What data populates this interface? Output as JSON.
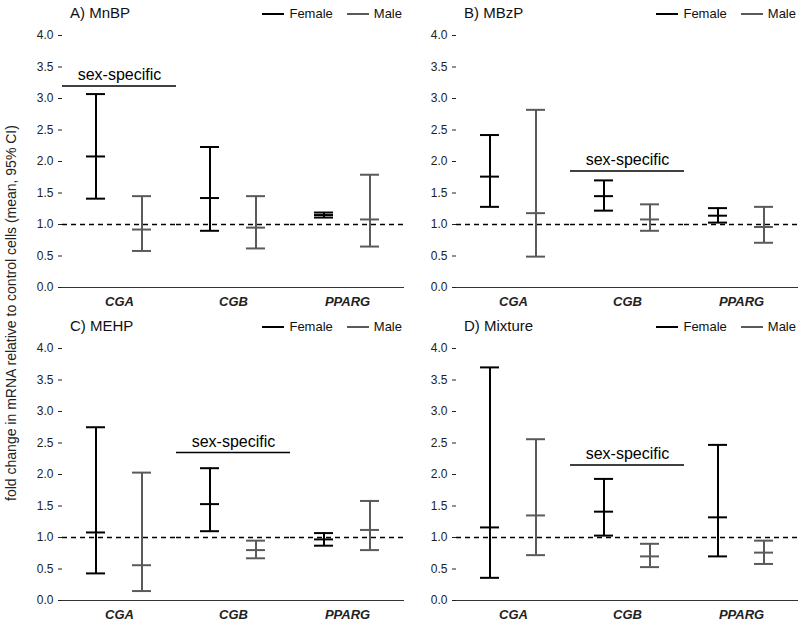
{
  "ylabel": "fold change in mRNA relative to control cells (mean, 95% CI)",
  "chart_data": [
    {
      "type": "errorbar",
      "title": "A) MnBP",
      "categories": [
        "CGA",
        "CGB",
        "PPARG"
      ],
      "series": [
        {
          "name": "Female",
          "color": "#000000",
          "values": [
            2.08,
            1.42,
            1.15
          ],
          "ci_low": [
            1.41,
            0.9,
            1.11
          ],
          "ci_high": [
            3.07,
            2.23,
            1.19
          ]
        },
        {
          "name": "Male",
          "color": "#5a5a5a",
          "values": [
            0.92,
            0.95,
            1.08
          ],
          "ci_low": [
            0.58,
            0.62,
            0.65
          ],
          "ci_high": [
            1.45,
            1.45,
            1.79
          ]
        }
      ],
      "ylim": [
        0,
        4
      ],
      "yticks": [
        0,
        0.5,
        1,
        1.5,
        2,
        2.5,
        3,
        3.5,
        4
      ],
      "reference_line": 1,
      "legend": "top-right",
      "annotations": [
        {
          "text": "sex-specific",
          "category": "CGA",
          "y": 3.2
        }
      ]
    },
    {
      "type": "errorbar",
      "title": "B) MBzP",
      "categories": [
        "CGA",
        "CGB",
        "PPARG"
      ],
      "series": [
        {
          "name": "Female",
          "color": "#000000",
          "values": [
            1.76,
            1.45,
            1.14
          ],
          "ci_low": [
            1.28,
            1.22,
            1.03
          ],
          "ci_high": [
            2.42,
            1.7,
            1.26
          ]
        },
        {
          "name": "Male",
          "color": "#5a5a5a",
          "values": [
            1.18,
            1.08,
            0.96
          ],
          "ci_low": [
            0.49,
            0.9,
            0.71
          ],
          "ci_high": [
            2.82,
            1.32,
            1.28
          ]
        }
      ],
      "ylim": [
        0,
        4
      ],
      "yticks": [
        0,
        0.5,
        1,
        1.5,
        2,
        2.5,
        3,
        3.5,
        4
      ],
      "reference_line": 1,
      "legend": "top-right",
      "annotations": [
        {
          "text": "sex-specific",
          "category": "CGB",
          "y": 1.85
        }
      ]
    },
    {
      "type": "errorbar",
      "title": "C) MEHP",
      "categories": [
        "CGA",
        "CGB",
        "PPARG"
      ],
      "series": [
        {
          "name": "Female",
          "color": "#000000",
          "values": [
            1.08,
            1.53,
            0.97
          ],
          "ci_low": [
            0.43,
            1.1,
            0.87
          ],
          "ci_high": [
            2.75,
            2.1,
            1.07
          ]
        },
        {
          "name": "Male",
          "color": "#5a5a5a",
          "values": [
            0.56,
            0.8,
            1.12
          ],
          "ci_low": [
            0.15,
            0.67,
            0.8
          ],
          "ci_high": [
            2.03,
            0.95,
            1.58
          ]
        }
      ],
      "ylim": [
        0,
        4
      ],
      "yticks": [
        0,
        0.5,
        1,
        1.5,
        2,
        2.5,
        3,
        3.5,
        4
      ],
      "reference_line": 1,
      "legend": "top-right",
      "annotations": [
        {
          "text": "sex-specific",
          "category": "CGB",
          "y": 2.35
        }
      ]
    },
    {
      "type": "errorbar",
      "title": "D) Mixture",
      "categories": [
        "CGA",
        "CGB",
        "PPARG"
      ],
      "series": [
        {
          "name": "Female",
          "color": "#000000",
          "values": [
            1.16,
            1.41,
            1.32
          ],
          "ci_low": [
            0.36,
            1.03,
            0.7
          ],
          "ci_high": [
            3.7,
            1.93,
            2.47
          ]
        },
        {
          "name": "Male",
          "color": "#5a5a5a",
          "values": [
            1.35,
            0.7,
            0.76
          ],
          "ci_low": [
            0.72,
            0.53,
            0.58
          ],
          "ci_high": [
            2.56,
            0.9,
            0.95
          ]
        }
      ],
      "ylim": [
        0,
        4
      ],
      "yticks": [
        0,
        0.5,
        1,
        1.5,
        2,
        2.5,
        3,
        3.5,
        4
      ],
      "reference_line": 1,
      "legend": "top-right",
      "annotations": [
        {
          "text": "sex-specific",
          "category": "CGB",
          "y": 2.15
        }
      ]
    }
  ]
}
